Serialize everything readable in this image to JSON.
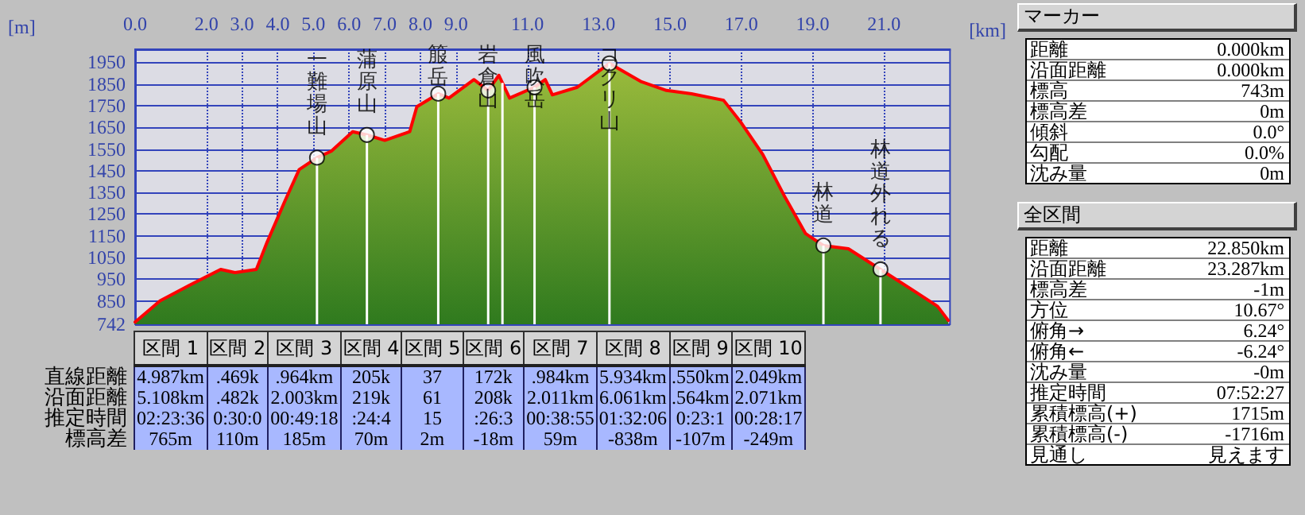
{
  "chart_data": [
    {
      "type": "area",
      "xlabel": "[km]",
      "ylabel": "[m]",
      "color": "#ff0000",
      "grid": true,
      "x": [
        0,
        0.7,
        1.5,
        2.4,
        2.8,
        3.4,
        3.7,
        4.2,
        4.6,
        5.1,
        5.5,
        6.1,
        6.5,
        7.0,
        7.7,
        7.9,
        8.5,
        8.8,
        9.5,
        9.9,
        10.2,
        10.5,
        11.2,
        11.5,
        11.7,
        12.4,
        13.3,
        14.2,
        14.9,
        15.6,
        16.5,
        17.0,
        17.6,
        18.2,
        18.8,
        19.3,
        20.0,
        20.9,
        21.8,
        22.5,
        22.8
      ],
      "values": [
        752,
        850,
        920,
        995,
        980,
        995,
        1120,
        1310,
        1455,
        1510,
        1540,
        1630,
        1615,
        1590,
        1630,
        1745,
        1805,
        1785,
        1870,
        1820,
        1890,
        1785,
        1835,
        1870,
        1800,
        1835,
        1945,
        1860,
        1820,
        1805,
        1775,
        1670,
        1525,
        1335,
        1160,
        1105,
        1090,
        995,
        900,
        825,
        760
      ],
      "xlim": [
        0,
        22.85
      ],
      "ylim": [
        742,
        2010
      ],
      "xticks": [
        {
          "value": 0,
          "label": "0.0"
        },
        {
          "value": 2,
          "label": "2.0"
        },
        {
          "value": 3,
          "label": "3.0"
        },
        {
          "value": 4,
          "label": "4.0"
        },
        {
          "value": 5,
          "label": "5.0"
        },
        {
          "value": 6,
          "label": "6.0"
        },
        {
          "value": 7,
          "label": "7.0"
        },
        {
          "value": 8,
          "label": "8.0"
        },
        {
          "value": 9,
          "label": "9.0"
        },
        {
          "value": 11,
          "label": "11.0"
        },
        {
          "value": 13,
          "label": "13.0"
        },
        {
          "value": 15,
          "label": "15.0"
        },
        {
          "value": 17,
          "label": "17.0"
        },
        {
          "value": 19,
          "label": "19.0"
        },
        {
          "value": 21,
          "label": "21.0"
        }
      ],
      "yticks": [
        742,
        850,
        950,
        1050,
        1150,
        1250,
        1350,
        1450,
        1550,
        1650,
        1750,
        1850,
        1950
      ],
      "ref_lines": [
        {
          "axis": "x",
          "value": 5.1,
          "color": "#ffffff"
        },
        {
          "axis": "x",
          "value": 6.5,
          "color": "#ffffff"
        },
        {
          "axis": "x",
          "value": 8.5,
          "color": "#ffffff"
        },
        {
          "axis": "x",
          "value": 9.9,
          "color": "#ffffff"
        },
        {
          "axis": "x",
          "value": 10.3,
          "color": "#ffffff"
        },
        {
          "axis": "x",
          "value": 11.2,
          "color": "#ffffff"
        },
        {
          "axis": "x",
          "value": 13.3,
          "color": "#ffffff"
        },
        {
          "axis": "x",
          "value": 19.3,
          "color": "#ffffff"
        },
        {
          "axis": "x",
          "value": 20.9,
          "color": "#ffffff"
        }
      ],
      "annotations": [
        {
          "text": "一難場山",
          "x": 5.1,
          "y": 1510
        },
        {
          "text": "蒲原山",
          "x": 6.5,
          "y": 1615
        },
        {
          "text": "箙岳",
          "x": 8.5,
          "y": 1805
        },
        {
          "text": "岩倉山",
          "x": 9.9,
          "y": 1820
        },
        {
          "text": "風吹岳",
          "x": 11.2,
          "y": 1835
        },
        {
          "text": "コクリ山",
          "x": 13.3,
          "y": 1945
        },
        {
          "text": "林道",
          "x": 19.3,
          "y": 1105
        },
        {
          "text": "林道外れる",
          "x": 20.9,
          "y": 995
        }
      ]
    },
    {
      "type": "other",
      "categories": [
        "区間 1",
        "区間 2",
        "区間 3",
        "区間 4",
        "区間 5",
        "区間 6",
        "区間 7",
        "区間 8",
        "区間 9",
        "区間 10"
      ],
      "y_categories": [
        "直線距離",
        "沿面距離",
        "推定時間",
        "標高差"
      ],
      "cell_labels": [
        [
          "4.987km",
          ".469k",
          ".964km",
          "205k",
          "37",
          "172k",
          ".984km",
          "5.934km",
          ".550km",
          "2.049km"
        ],
        [
          "5.108km",
          ".482k",
          "2.003km",
          "219k",
          "61",
          "208k",
          "2.011km",
          "6.061km",
          ".564km",
          "2.071km"
        ],
        [
          "02:23:36",
          "0:30:0",
          "00:49:18",
          ":24:4",
          "15",
          ":26:3",
          "00:38:55",
          "01:32:06",
          "0:23:1",
          "00:28:17"
        ],
        [
          "765m",
          "110m",
          "185m",
          "70m",
          "2m",
          "-18m",
          "59m",
          "-838m",
          "-107m",
          "-249m"
        ]
      ]
    },
    {
      "type": "other",
      "title": "マーカー",
      "y_categories": [
        "距離",
        "沿面距離",
        "標高",
        "標高差",
        "傾斜",
        "勾配",
        "沈み量"
      ],
      "cell_labels": [
        [
          "0.000km"
        ],
        [
          "0.000km"
        ],
        [
          "743m"
        ],
        [
          "0m"
        ],
        [
          "0.0°"
        ],
        [
          "0.0%"
        ],
        [
          "0m"
        ]
      ]
    },
    {
      "type": "other",
      "title": "全区間",
      "y_categories": [
        "距離",
        "沿面距離",
        "標高差",
        "方位",
        "俯角→",
        "俯角←",
        "沈み量",
        "推定時間",
        "累積標高(+)",
        "累積標高(-)",
        "見通し"
      ],
      "cell_labels": [
        [
          "22.850km"
        ],
        [
          "23.287km"
        ],
        [
          "-1m"
        ],
        [
          "10.67°"
        ],
        [
          "6.24°"
        ],
        [
          "-6.24°"
        ],
        [
          "-0m"
        ],
        [
          "07:52:27"
        ],
        [
          "1715m"
        ],
        [
          "-1716m"
        ],
        [
          "見えます"
        ]
      ]
    }
  ]
}
